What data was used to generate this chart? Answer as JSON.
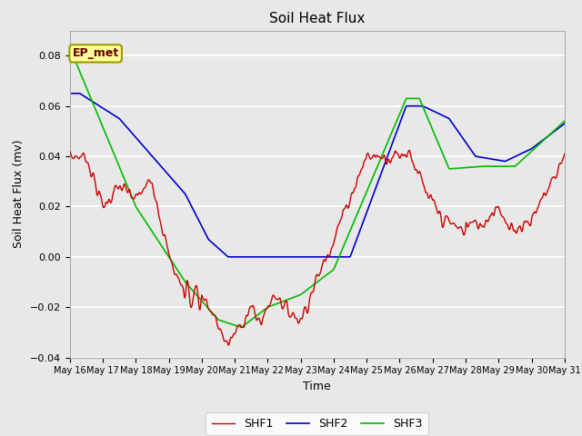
{
  "title": "Soil Heat Flux",
  "ylabel": "Soil Heat Flux (mv)",
  "xlabel": "Time",
  "annotation": "EP_met",
  "ylim": [
    -0.04,
    0.09
  ],
  "yticks": [
    -0.04,
    -0.02,
    0.0,
    0.02,
    0.04,
    0.06,
    0.08
  ],
  "x_labels": [
    "May 16",
    "May 17",
    "May 18",
    "May 19",
    "May 20",
    "May 21",
    "May 22",
    "May 23",
    "May 24",
    "May 25",
    "May 26",
    "May 27",
    "May 28",
    "May 29",
    "May 30",
    "May 31"
  ],
  "colors": {
    "SHF1": "#cc0000",
    "SHF2": "#0000cc",
    "SHF3": "#00bb00"
  },
  "background_color": "#e8e8e8",
  "plot_bg_color": "#e8e8e8",
  "grid_color": "#ffffff",
  "title_fontsize": 11,
  "label_fontsize": 9,
  "tick_fontsize": 8
}
